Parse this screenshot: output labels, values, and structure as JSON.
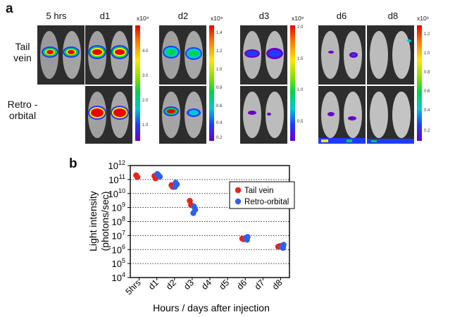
{
  "panel_a": {
    "letter": "a",
    "columns": [
      "5 hrs",
      "d1",
      "d2",
      "d3",
      "d6",
      "d8"
    ],
    "rows": [
      {
        "line1": "Tail",
        "line2": "vein"
      },
      {
        "line1": "Retro -",
        "line2": "orbital"
      }
    ],
    "scale_bars": [
      {
        "exponent": "x10⁹",
        "ticks": [
          "4.0",
          "3.0",
          "2.0",
          "1.0"
        ]
      },
      {
        "exponent": "x10⁹",
        "ticks": [
          "1.4",
          "1.2",
          "1.0",
          "0.8",
          "0.6",
          "0.4",
          "0.2"
        ]
      },
      {
        "exponent": "x10⁸",
        "ticks": [
          "2.0",
          "1.5",
          "1.0",
          "0.5"
        ]
      },
      {
        "exponent": "x10⁶",
        "ticks": [
          "1.2",
          "1.0",
          "0.8",
          "0.6",
          "0.4",
          "0.2"
        ]
      }
    ],
    "colors": {
      "red": "#e60000",
      "yellow": "#ffe600",
      "green": "#00d24a",
      "blue": "#1e3cff",
      "purple": "#6a00c8",
      "background": "#2d2d2d"
    }
  },
  "panel_b": {
    "letter": "b",
    "chart_data": {
      "type": "scatter",
      "xlabel": "Hours / days after injection",
      "ylabel_line1": "Light intensity",
      "ylabel_line2": "(photons/sec)",
      "y_scale": "log",
      "ylim_exponents": [
        4,
        12
      ],
      "y_tick_labels": [
        {
          "base": "10",
          "exp": "4"
        },
        {
          "base": "10",
          "exp": "5"
        },
        {
          "base": "10",
          "exp": "6"
        },
        {
          "base": "10",
          "exp": "7"
        },
        {
          "base": "10",
          "exp": "8"
        },
        {
          "base": "10",
          "exp": "9"
        },
        {
          "base": "10",
          "exp": "10"
        },
        {
          "base": "10",
          "exp": "11"
        },
        {
          "base": "10",
          "exp": "12"
        }
      ],
      "categories": [
        "5hrs",
        "d1",
        "d2",
        "d3",
        "d4",
        "d5",
        "d6",
        "d7",
        "d8"
      ],
      "grid": "horizontal dotted",
      "legend_position": "upper-right",
      "series": [
        {
          "name": "Tail vein",
          "color": "#e8231e",
          "points": [
            {
              "x": "5hrs",
              "y": 200000000000.0
            },
            {
              "x": "5hrs",
              "y": 150000000000.0
            },
            {
              "x": "d1",
              "y": 150000000000.0
            },
            {
              "x": "d1",
              "y": 180000000000.0
            },
            {
              "x": "d1",
              "y": 120000000000.0
            },
            {
              "x": "d2",
              "y": 40000000000.0
            },
            {
              "x": "d2",
              "y": 30000000000.0
            },
            {
              "x": "d2",
              "y": 35000000000.0
            },
            {
              "x": "d3",
              "y": 3000000000.0
            },
            {
              "x": "d3",
              "y": 1500000000.0
            },
            {
              "x": "d6",
              "y": 6000000.0
            },
            {
              "x": "d6",
              "y": 5500000.0
            },
            {
              "x": "d8",
              "y": 1800000.0
            },
            {
              "x": "d8",
              "y": 1600000.0
            }
          ]
        },
        {
          "name": "Retro-orbital",
          "color": "#2f62e6",
          "points": [
            {
              "x": "d1",
              "y": 250000000000.0
            },
            {
              "x": "d1",
              "y": 200000000000.0
            },
            {
              "x": "d1",
              "y": 160000000000.0
            },
            {
              "x": "d2",
              "y": 60000000000.0
            },
            {
              "x": "d2",
              "y": 45000000000.0
            },
            {
              "x": "d2",
              "y": 30000000000.0
            },
            {
              "x": "d3",
              "y": 1200000000.0
            },
            {
              "x": "d3",
              "y": 700000000.0
            },
            {
              "x": "d3",
              "y": 400000000.0
            },
            {
              "x": "d6",
              "y": 8000000.0
            },
            {
              "x": "d6",
              "y": 6500000.0
            },
            {
              "x": "d6",
              "y": 5000000.0
            },
            {
              "x": "d8",
              "y": 2200000.0
            },
            {
              "x": "d8",
              "y": 1500000.0
            },
            {
              "x": "d8",
              "y": 1300000.0
            }
          ]
        }
      ]
    }
  }
}
